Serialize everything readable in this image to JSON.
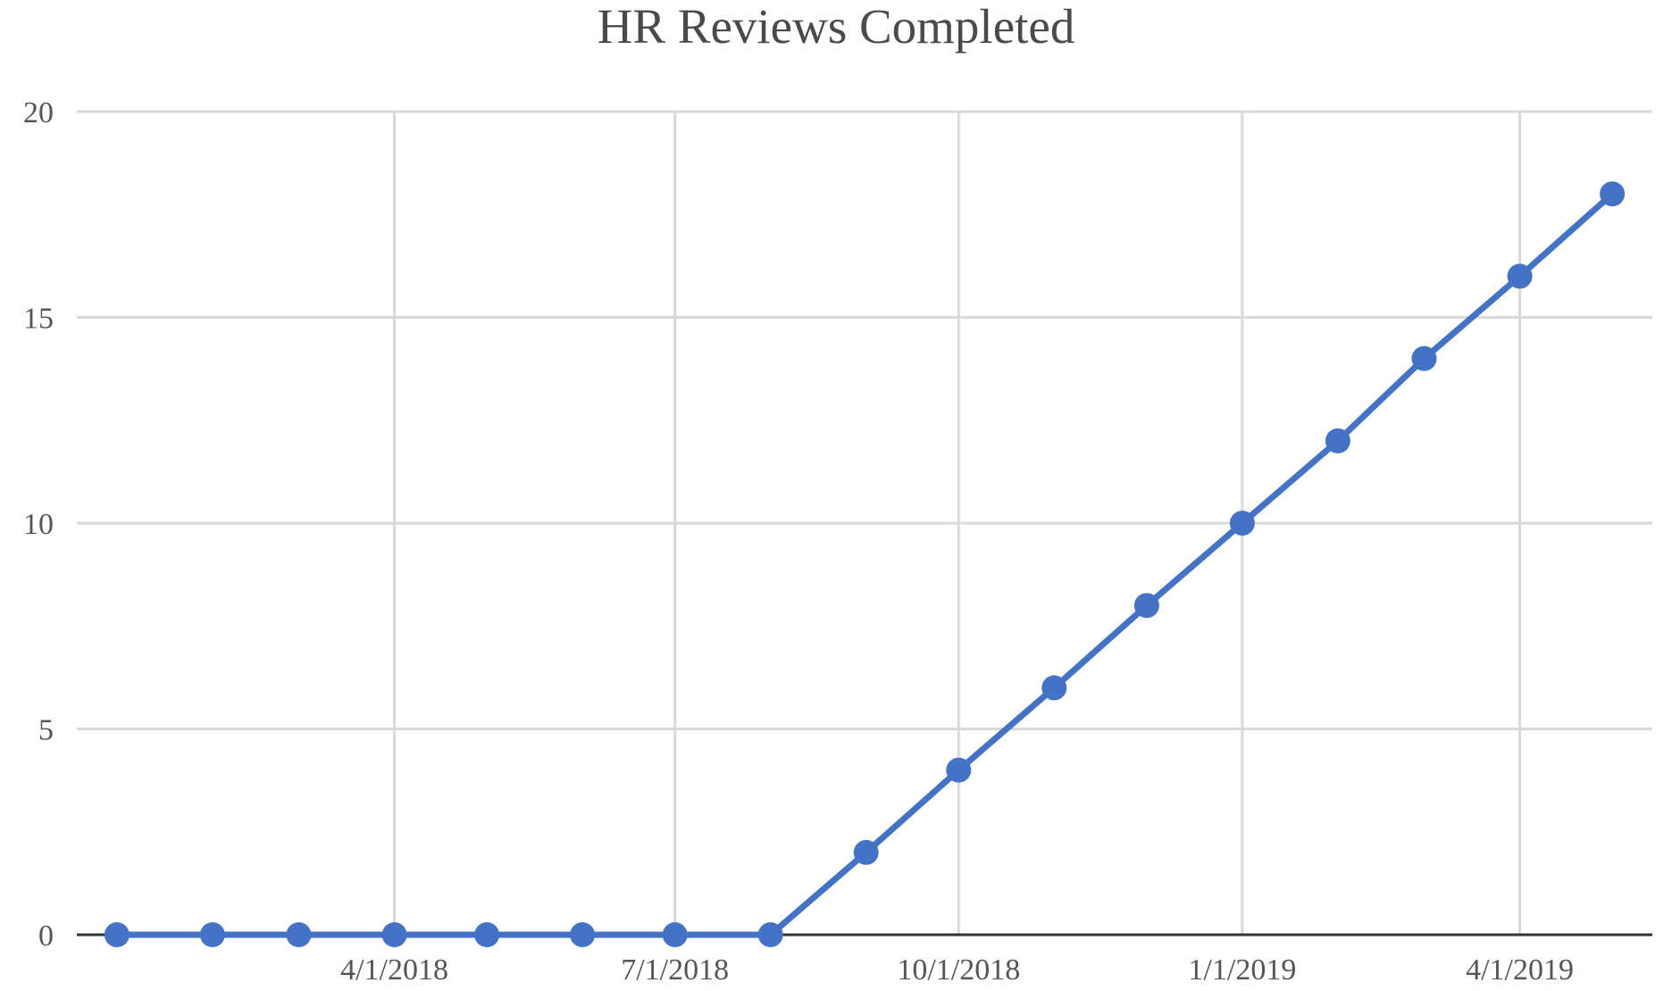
{
  "chart_data": {
    "type": "line",
    "title": "HR Reviews Completed",
    "xlabel": "",
    "ylabel": "",
    "x_type": "date",
    "x": [
      "2018-01-01",
      "2018-02-01",
      "2018-03-01",
      "2018-04-01",
      "2018-05-01",
      "2018-06-01",
      "2018-07-01",
      "2018-08-01",
      "2018-09-01",
      "2018-10-01",
      "2018-11-01",
      "2018-12-01",
      "2019-01-01",
      "2019-02-01",
      "2019-03-01",
      "2019-04-01",
      "2019-05-01"
    ],
    "series": [
      {
        "values": [
          0,
          0,
          0,
          0,
          0,
          0,
          0,
          0,
          2,
          4,
          6,
          8,
          10,
          12,
          14,
          16,
          18
        ]
      }
    ],
    "x_ticks": [
      {
        "date": "2018-04-01",
        "label": "4/1/2018"
      },
      {
        "date": "2018-07-01",
        "label": "7/1/2018"
      },
      {
        "date": "2018-10-01",
        "label": "10/1/2018"
      },
      {
        "date": "2019-01-01",
        "label": "1/1/2019"
      },
      {
        "date": "2019-04-01",
        "label": "4/1/2019"
      }
    ],
    "xlim": [
      "2017-12-19",
      "2019-05-14"
    ],
    "y_ticks": [
      0,
      5,
      10,
      15,
      20
    ],
    "ylim": [
      0,
      20
    ],
    "grid": true,
    "legend": "none",
    "colors": {
      "series": "#4472c4",
      "grid": "#d9d9d9",
      "axis": "#333333"
    }
  }
}
